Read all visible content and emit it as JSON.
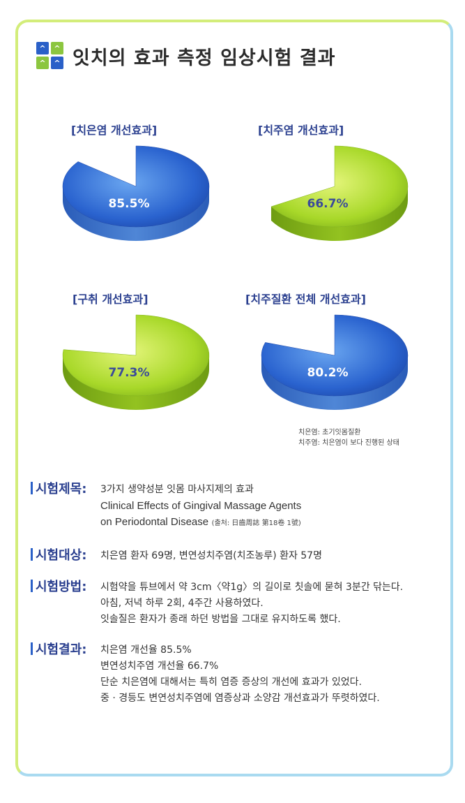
{
  "title": "잇치의 효과 측정 임상시험 결과",
  "logo": {
    "glyph_top": "^ ^",
    "glyph_bottom": "^ ^"
  },
  "colors": {
    "blue": "#2a63cf",
    "green": "#a8d829",
    "label": "#2a3f8f"
  },
  "chart_data": [
    {
      "type": "pie",
      "title": "[치은염 개선효과]",
      "value": 85.5,
      "value_label": "85.5%",
      "color": "blue"
    },
    {
      "type": "pie",
      "title": "[치주염 개선효과]",
      "value": 66.7,
      "value_label": "66.7%",
      "color": "green"
    },
    {
      "type": "pie",
      "title": "[구취 개선효과]",
      "value": 77.3,
      "value_label": "77.3%",
      "color": "green"
    },
    {
      "type": "pie",
      "title": "[치주질환 전체 개선효과]",
      "value": 80.2,
      "value_label": "80.2%",
      "color": "blue"
    }
  ],
  "legend_note": {
    "line1": "치은염: 초기잇몸질환",
    "line2": "치주염: 치은염이 보다 진행된 상태"
  },
  "sections": {
    "subject": {
      "heading": "시험제목:",
      "line1": "3가지 생약성분 잇몸 마사지제의 효과",
      "line2": "Clinical Effects of Gingival Massage Agents",
      "line3": "on Periodontal Disease",
      "source": "(출처: 日齒周誌 第18卷 1號)"
    },
    "target": {
      "heading": "시험대상:",
      "line1": "치은염 환자 69명, 변연성치주염(치조농루) 환자 57명"
    },
    "method": {
      "heading": "시험방법:",
      "line1": "시험약을 튜브에서 약 3cm〈약1g〉의 길이로 칫솔에 묻혀 3분간 닦는다.",
      "line2": "아침, 저녁 하루 2회, 4주간 사용하였다.",
      "line3": "잇솔질은 환자가 종래 하던 방법을 그대로 유지하도록 했다."
    },
    "result": {
      "heading": "시험결과:",
      "line1": "치은염 개선율 85.5%",
      "line2": "변연성치주염 개선율 66.7%",
      "line3": "단순 치은염에 대해서는 특히 염증 증상의 개선에 효과가 있었다.",
      "line4": "중 · 경등도 변연성치주염에 염증상과 소양감 개선효과가 뚜렷하였다."
    }
  }
}
